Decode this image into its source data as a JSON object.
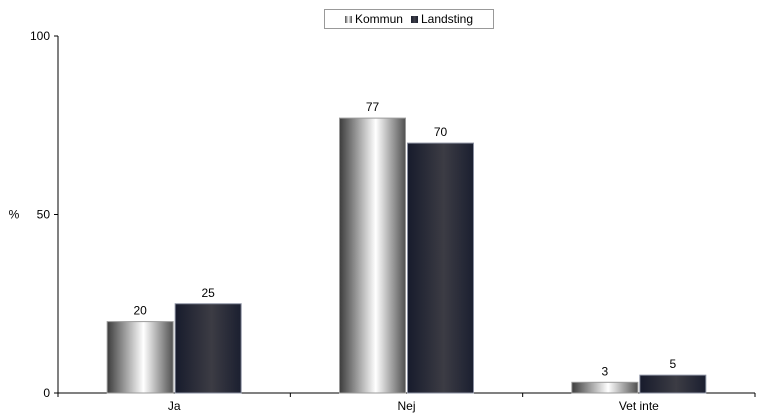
{
  "chart_data": {
    "type": "bar",
    "categories": [
      "Ja",
      "Nej",
      "Vet inte"
    ],
    "series": [
      {
        "name": "Kommun",
        "values": [
          20,
          77,
          3
        ]
      },
      {
        "name": "Landsting",
        "values": [
          25,
          70,
          5
        ]
      }
    ],
    "ylabel": "%",
    "ylim": [
      0,
      100
    ],
    "yticks": [
      0,
      50,
      100
    ],
    "legend": "top-center",
    "grid": false
  },
  "legend": {
    "kommun": "Kommun",
    "landsting": "Landsting"
  }
}
